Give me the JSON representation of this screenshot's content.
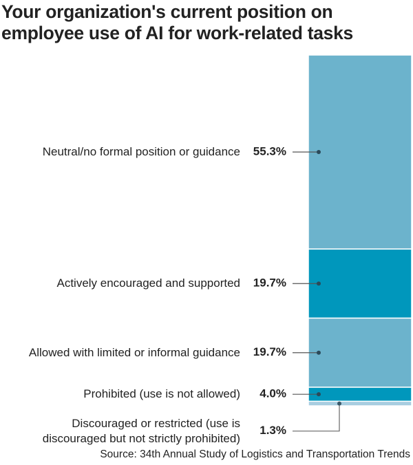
{
  "chart_data": {
    "type": "stacked-column",
    "title": "Your organization's current position on employee use of AI for work-related tasks",
    "categories": [
      "Neutral/no formal position or guidance",
      "Actively encouraged and supported",
      "Allowed with limited or informal guidance",
      "Prohibited (use is not allowed)",
      "Discouraged or restricted (use is discouraged but not strictly prohibited)"
    ],
    "values": [
      55.3,
      19.7,
      19.7,
      4.0,
      1.3
    ],
    "value_labels": [
      "55.3%",
      "19.7%",
      "19.7%",
      "4.0%",
      "1.3%"
    ],
    "colors": [
      "#6cb3cc",
      "#0097bc",
      "#6cb3cc",
      "#0097bc",
      "#a8cde0"
    ],
    "source": "Source: 34th Annual Study of Logistics and Transportation Trends"
  }
}
